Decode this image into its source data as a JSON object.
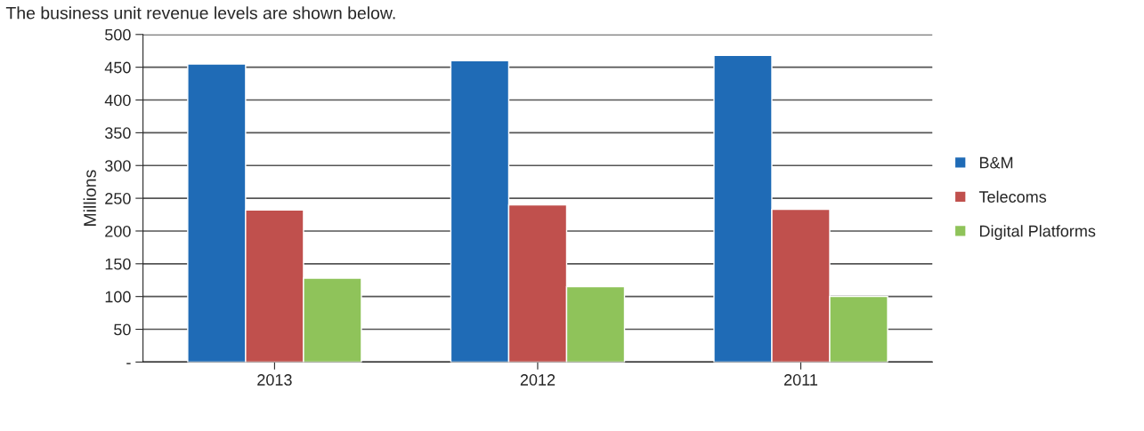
{
  "chart_data": {
    "type": "bar",
    "title": "The business unit revenue levels are shown below.",
    "ylabel": "Millions",
    "categories": [
      "2013",
      "2012",
      "2011"
    ],
    "series": [
      {
        "name": "B&M",
        "color": "#1f6bb6",
        "values": [
          455,
          460,
          468
        ]
      },
      {
        "name": "Telecoms",
        "color": "#c0504d",
        "values": [
          232,
          240,
          233
        ]
      },
      {
        "name": "Digital Platforms",
        "color": "#8fc35a",
        "values": [
          128,
          115,
          100
        ]
      }
    ],
    "ylim": [
      0,
      500
    ],
    "yticks": [
      {
        "value": 0,
        "label": "-"
      },
      50,
      100,
      150,
      200,
      250,
      300,
      350,
      400,
      450,
      500
    ],
    "grid": "y",
    "legend": "right"
  }
}
